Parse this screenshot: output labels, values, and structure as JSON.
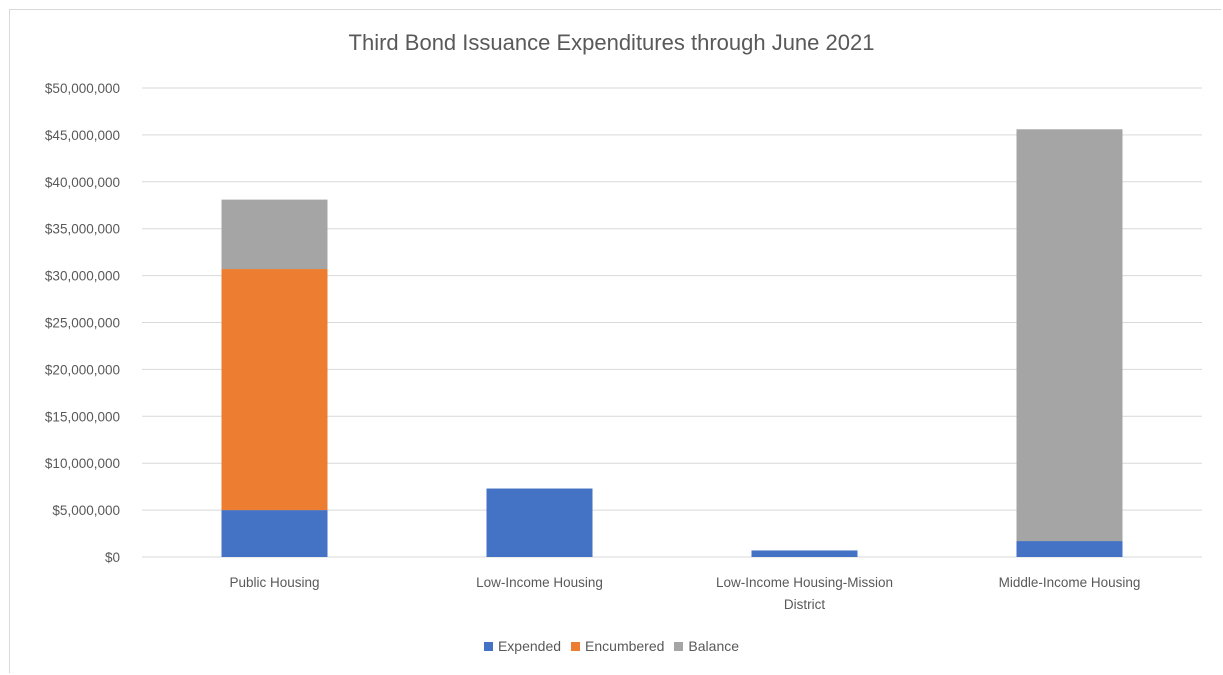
{
  "chart_data": {
    "type": "bar",
    "stacked": true,
    "title": "Third Bond Issuance Expenditures through June 2021",
    "xlabel": "",
    "ylabel": "",
    "ylim": [
      0,
      50000000
    ],
    "y_ticks": [
      "$0",
      "$5,000,000",
      "$10,000,000",
      "$15,000,000",
      "$20,000,000",
      "$25,000,000",
      "$30,000,000",
      "$35,000,000",
      "$40,000,000",
      "$45,000,000",
      "$50,000,000"
    ],
    "categories": [
      [
        "Public Housing"
      ],
      [
        "Low-Income Housing"
      ],
      [
        "Low-Income Housing-Mission",
        "District"
      ],
      [
        "Middle-Income Housing"
      ]
    ],
    "series": [
      {
        "name": "Expended",
        "color": "#4472c4",
        "values": [
          5000000,
          7300000,
          700000,
          1700000
        ]
      },
      {
        "name": "Encumbered",
        "color": "#ed7d31",
        "values": [
          25700000,
          0,
          0,
          0
        ]
      },
      {
        "name": "Balance",
        "color": "#a5a5a5",
        "values": [
          7400000,
          0,
          0,
          43900000
        ]
      }
    ],
    "grid": true,
    "legend_position": "bottom"
  }
}
